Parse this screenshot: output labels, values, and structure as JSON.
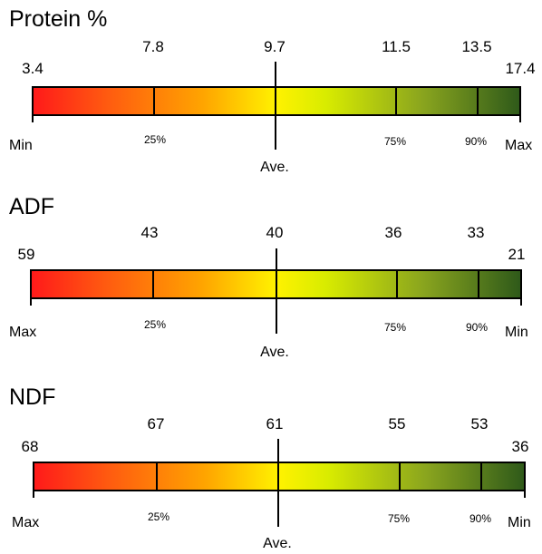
{
  "panels": [
    {
      "title": "Protein %",
      "left_value": "3.4",
      "right_value": "17.4",
      "left_label": "Min",
      "right_label": "Max",
      "p25_value": "7.8",
      "avg_value": "9.7",
      "p75_value": "11.5",
      "p90_value": "13.5",
      "p25_label": "25%",
      "avg_label": "Ave.",
      "p75_label": "75%",
      "p90_label": "90%"
    },
    {
      "title": "ADF",
      "left_value": "59",
      "right_value": "21",
      "left_label": "Max",
      "right_label": "Min",
      "p25_value": "43",
      "avg_value": "40",
      "p75_value": "36",
      "p90_value": "33",
      "p25_label": "25%",
      "avg_label": "Ave.",
      "p75_label": "75%",
      "p90_label": "90%"
    },
    {
      "title": "NDF",
      "left_value": "68",
      "right_value": "36",
      "left_label": "Max",
      "right_label": "Min",
      "p25_value": "67",
      "avg_value": "61",
      "p75_value": "55",
      "p90_value": "53",
      "p25_label": "25%",
      "avg_label": "Ave.",
      "p75_label": "75%",
      "p90_label": "90%"
    }
  ],
  "colors": {
    "gradient": [
      "#ff1a1a",
      "#ff5a10",
      "#ffa500",
      "#fff200",
      "#d9ec00",
      "#8aa51e",
      "#2f5a1a"
    ],
    "line": "#000000"
  }
}
